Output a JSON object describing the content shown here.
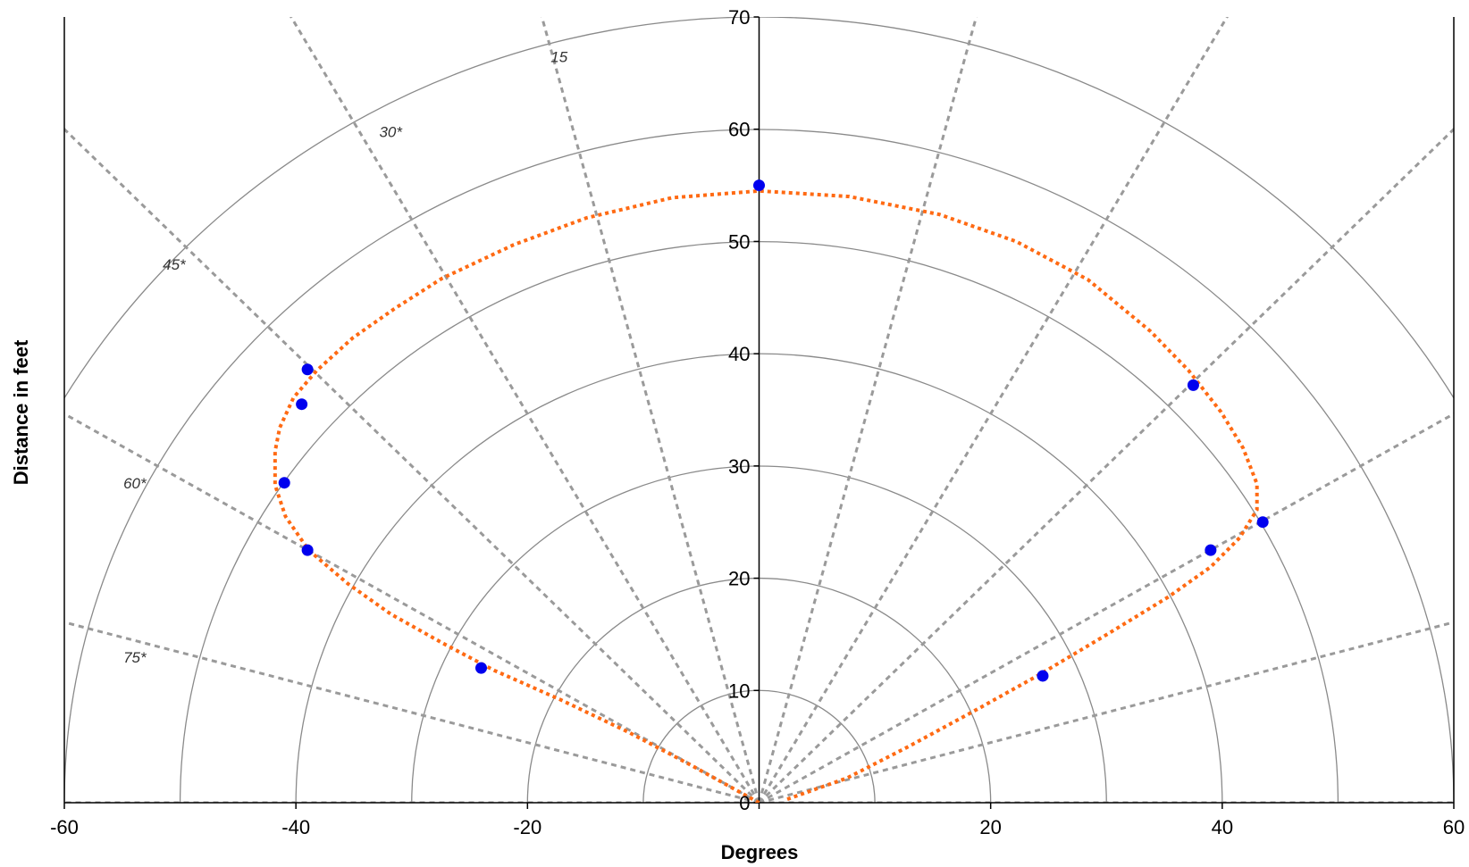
{
  "chart_data": {
    "type": "scatter",
    "title": "",
    "xlabel": "Degrees",
    "ylabel": "Distance in feet",
    "xlim": [
      -60,
      60
    ],
    "ylim": [
      0,
      70
    ],
    "x_ticks": [
      -60,
      -40,
      -20,
      0,
      20,
      40,
      60
    ],
    "x_tick_labels": [
      "-60",
      "-40",
      "-20",
      "",
      "20",
      "40",
      "60"
    ],
    "y_ticks": [
      0,
      10,
      20,
      30,
      40,
      50,
      60,
      70
    ],
    "y_tick_labels": [
      "0",
      "10",
      "20",
      "30",
      "40",
      "50",
      "60",
      "70"
    ],
    "grid": "polar",
    "range_rings": [
      10,
      20,
      30,
      40,
      50,
      60,
      70
    ],
    "angle_rays": [
      -90,
      -75,
      -60,
      -45,
      -30,
      -15,
      0,
      15,
      30,
      45,
      60,
      75,
      90
    ],
    "angle_labels": [
      {
        "text": "15",
        "x": -18.0,
        "y": 66.0
      },
      {
        "text": "30*",
        "x": -32.8,
        "y": 59.3
      },
      {
        "text": "45*",
        "x": -51.5,
        "y": 47.5
      },
      {
        "text": "60*",
        "x": -54.9,
        "y": 28.0
      },
      {
        "text": "75*",
        "x": -54.9,
        "y": 12.5
      }
    ],
    "series": [
      {
        "marker": "dot",
        "color": "#0000ee",
        "points": [
          [
            0.0,
            55.0
          ],
          [
            -39.0,
            38.6
          ],
          [
            -39.5,
            35.5
          ],
          [
            -41.0,
            28.5
          ],
          [
            -39.0,
            22.5
          ],
          [
            -24.0,
            12.0
          ],
          [
            37.5,
            37.2
          ],
          [
            43.5,
            25.0
          ],
          [
            39.0,
            22.5
          ],
          [
            24.5,
            11.3
          ]
        ]
      },
      {
        "style": "dotted-line",
        "color": "#ff6a13",
        "points": [
          [
            0.0,
            0.0
          ],
          [
            -5.8,
            3.3
          ],
          [
            -11.3,
            6.3
          ],
          [
            -17.2,
            9.2
          ],
          [
            -22.9,
            11.8
          ],
          [
            -27.3,
            14.2
          ],
          [
            -31.8,
            16.8
          ],
          [
            -35.5,
            19.5
          ],
          [
            -38.9,
            22.5
          ],
          [
            -40.9,
            25.5
          ],
          [
            -41.8,
            28.3
          ],
          [
            -41.8,
            31.3
          ],
          [
            -41.4,
            33.4
          ],
          [
            -40.2,
            36.1
          ],
          [
            -38.2,
            38.5
          ],
          [
            -35.1,
            41.4
          ],
          [
            -31.5,
            44.0
          ],
          [
            -27.4,
            46.7
          ],
          [
            -21.2,
            49.7
          ],
          [
            -14.9,
            52.1
          ],
          [
            -7.5,
            53.9
          ],
          [
            0.0,
            54.5
          ],
          [
            7.8,
            54.0
          ],
          [
            15.6,
            52.4
          ],
          [
            22.2,
            50.0
          ],
          [
            28.4,
            46.6
          ],
          [
            33.8,
            42.0
          ],
          [
            37.1,
            38.5
          ],
          [
            39.9,
            34.8
          ],
          [
            41.8,
            31.6
          ],
          [
            43.0,
            28.4
          ],
          [
            43.0,
            26.1
          ],
          [
            41.5,
            23.6
          ],
          [
            39.0,
            21.0
          ],
          [
            35.3,
            18.3
          ],
          [
            29.9,
            14.9
          ],
          [
            24.2,
            11.4
          ],
          [
            18.8,
            8.3
          ],
          [
            12.9,
            5.0
          ],
          [
            7.6,
            2.2
          ],
          [
            2.4,
            0.3
          ]
        ]
      }
    ]
  }
}
